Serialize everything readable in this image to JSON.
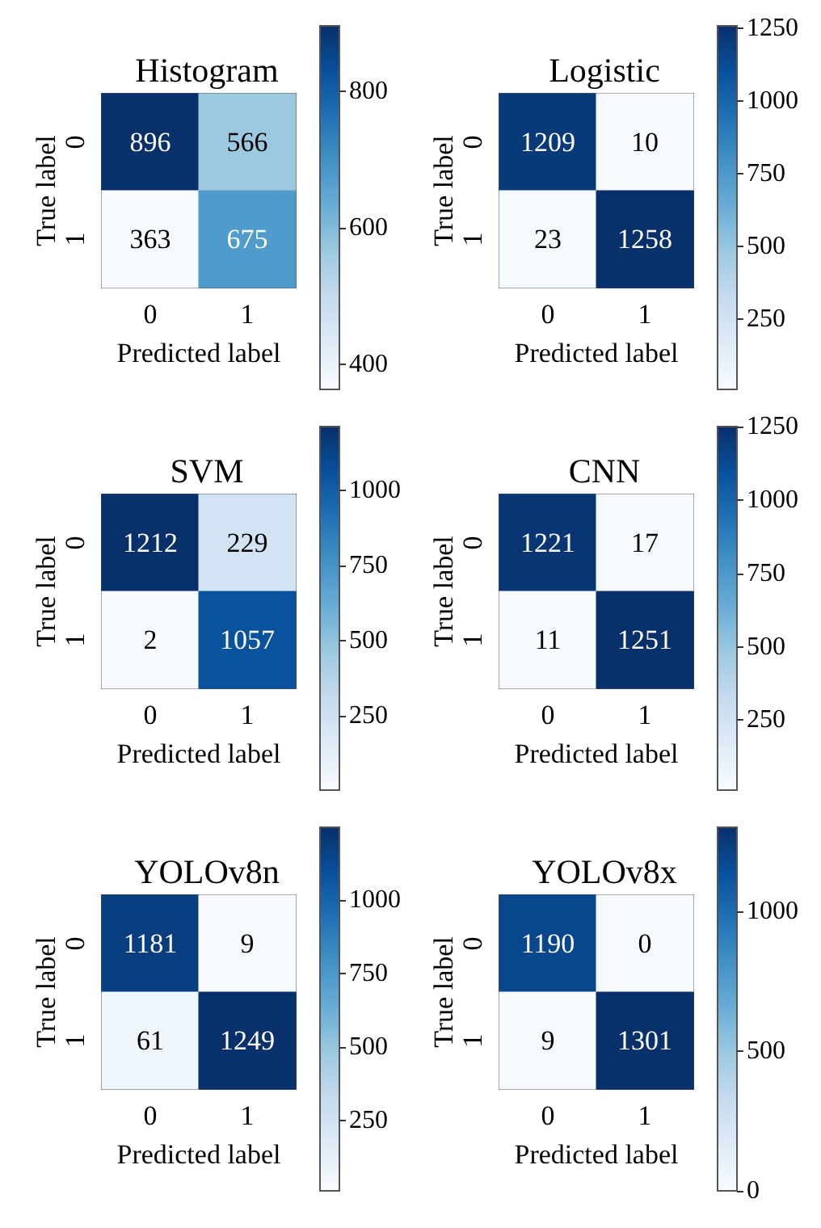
{
  "chart_data": [
    {
      "type": "heatmap",
      "title": "Histogram",
      "xlabel": "Predicted label",
      "ylabel": "True label",
      "categories": [
        "0",
        "1"
      ],
      "y_categories": [
        "0",
        "1"
      ],
      "cells": [
        [
          896,
          566
        ],
        [
          363,
          675
        ]
      ],
      "clim": [
        363,
        896
      ],
      "cticks": [
        400,
        600,
        800
      ],
      "data_labels": true,
      "grid": false
    },
    {
      "type": "heatmap",
      "title": "Logistic",
      "xlabel": "Predicted label",
      "ylabel": "True label",
      "categories": [
        "0",
        "1"
      ],
      "y_categories": [
        "0",
        "1"
      ],
      "cells": [
        [
          1209,
          10
        ],
        [
          23,
          1258
        ]
      ],
      "clim": [
        10,
        1258
      ],
      "cticks": [
        250,
        500,
        750,
        1000,
        1250
      ],
      "data_labels": true,
      "grid": false
    },
    {
      "type": "heatmap",
      "title": "SVM",
      "xlabel": "Predicted label",
      "ylabel": "True label",
      "categories": [
        "0",
        "1"
      ],
      "y_categories": [
        "0",
        "1"
      ],
      "cells": [
        [
          1212,
          229
        ],
        [
          2,
          1057
        ]
      ],
      "clim": [
        2,
        1212
      ],
      "cticks": [
        250,
        500,
        750,
        1000
      ],
      "data_labels": true,
      "grid": false
    },
    {
      "type": "heatmap",
      "title": "CNN",
      "xlabel": "Predicted label",
      "ylabel": "True label",
      "categories": [
        "0",
        "1"
      ],
      "y_categories": [
        "0",
        "1"
      ],
      "cells": [
        [
          1221,
          17
        ],
        [
          11,
          1251
        ]
      ],
      "clim": [
        11,
        1251
      ],
      "cticks": [
        250,
        500,
        750,
        1000,
        1250
      ],
      "data_labels": true,
      "grid": false
    },
    {
      "type": "heatmap",
      "title": "YOLOv8n",
      "xlabel": "Predicted label",
      "ylabel": "True label",
      "categories": [
        "0",
        "1"
      ],
      "y_categories": [
        "0",
        "1"
      ],
      "cells": [
        [
          1181,
          9
        ],
        [
          61,
          1249
        ]
      ],
      "clim": [
        9,
        1249
      ],
      "cticks": [
        250,
        500,
        750,
        1000
      ],
      "data_labels": true,
      "grid": false
    },
    {
      "type": "heatmap",
      "title": "YOLOv8x",
      "xlabel": "Predicted label",
      "ylabel": "True label",
      "categories": [
        "0",
        "1"
      ],
      "y_categories": [
        "0",
        "1"
      ],
      "cells": [
        [
          1190,
          0
        ],
        [
          9,
          1301
        ]
      ],
      "clim": [
        0,
        1301
      ],
      "cticks": [
        0,
        500,
        1000
      ],
      "data_labels": true,
      "grid": false
    }
  ]
}
